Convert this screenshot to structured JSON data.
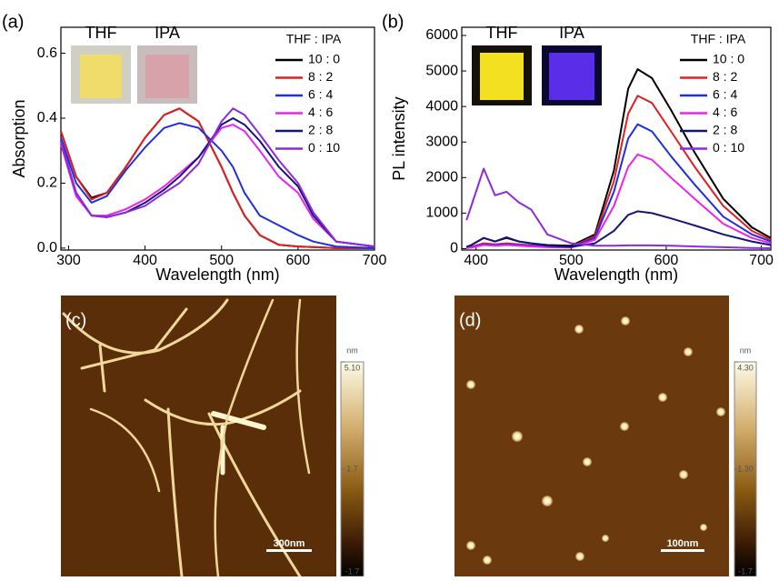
{
  "chart_data": [
    {
      "type": "line",
      "panel_label": "(a)",
      "x_label": "Wavelength (nm)",
      "y_label": "Absorption",
      "legend_title": "THF : IPA",
      "inset_labels": [
        "THF",
        "IPA"
      ],
      "xlim": [
        290,
        700
      ],
      "xticks": [
        300,
        400,
        500,
        600,
        700
      ],
      "ylim": [
        -0.006,
        0.68
      ],
      "yticks": [
        {
          "value": 0,
          "label": "0.0"
        },
        0.2,
        0.4,
        0.6
      ],
      "x": [
        290,
        310,
        330,
        350,
        375,
        400,
        425,
        445,
        470,
        500,
        515,
        530,
        550,
        575,
        600,
        620,
        650,
        700
      ],
      "series": [
        {
          "name": "10 : 0",
          "color": "#000000",
          "values": [
            0.36,
            0.22,
            0.155,
            0.17,
            0.25,
            0.34,
            0.41,
            0.43,
            0.39,
            0.25,
            0.17,
            0.1,
            0.04,
            0.01,
            0.005,
            0.003,
            0,
            0
          ]
        },
        {
          "name": "8 : 2",
          "color": "#e02020",
          "values": [
            0.36,
            0.22,
            0.15,
            0.17,
            0.25,
            0.34,
            0.41,
            0.43,
            0.39,
            0.25,
            0.17,
            0.1,
            0.04,
            0.01,
            0.005,
            0.003,
            0,
            0
          ]
        },
        {
          "name": "6 : 4",
          "color": "#1f2fe0",
          "values": [
            0.34,
            0.2,
            0.14,
            0.16,
            0.24,
            0.31,
            0.37,
            0.385,
            0.37,
            0.3,
            0.25,
            0.17,
            0.1,
            0.07,
            0.04,
            0.02,
            0.005,
            0
          ]
        },
        {
          "name": "4 : 6",
          "color": "#ee22ee",
          "values": [
            0.32,
            0.16,
            0.1,
            0.1,
            0.12,
            0.15,
            0.19,
            0.23,
            0.28,
            0.37,
            0.38,
            0.36,
            0.3,
            0.22,
            0.17,
            0.09,
            0.02,
            0.005
          ]
        },
        {
          "name": "2 : 8",
          "color": "#14147a",
          "values": [
            0.33,
            0.17,
            0.1,
            0.095,
            0.11,
            0.14,
            0.18,
            0.22,
            0.28,
            0.38,
            0.4,
            0.38,
            0.33,
            0.25,
            0.19,
            0.1,
            0.02,
            0.005
          ]
        },
        {
          "name": "0 : 10",
          "color": "#8a2be2",
          "values": [
            0.33,
            0.17,
            0.1,
            0.095,
            0.11,
            0.13,
            0.17,
            0.2,
            0.26,
            0.39,
            0.43,
            0.41,
            0.35,
            0.27,
            0.2,
            0.11,
            0.02,
            0.005
          ]
        }
      ]
    },
    {
      "type": "line",
      "panel_label": "(b)",
      "x_label": "Wavelength (nm)",
      "y_label": "PL intensity",
      "legend_title": "THF : IPA",
      "inset_labels": [
        "THF",
        "IPA"
      ],
      "xlim": [
        385,
        710
      ],
      "xticks": [
        400,
        500,
        600,
        700
      ],
      "ylim": [
        -40,
        6230
      ],
      "yticks": [
        0,
        1000,
        2000,
        3000,
        4000,
        5000,
        6000
      ],
      "x": [
        390,
        395,
        408,
        420,
        432,
        445,
        458,
        475,
        500,
        525,
        545,
        560,
        570,
        585,
        605,
        630,
        660,
        690,
        710
      ],
      "series": [
        {
          "name": "10 : 0",
          "color": "#000000",
          "values": [
            50,
            100,
            300,
            200,
            300,
            200,
            150,
            100,
            80,
            400,
            2200,
            4500,
            5050,
            4800,
            3900,
            2700,
            1400,
            600,
            300
          ]
        },
        {
          "name": "8 : 2",
          "color": "#e02020",
          "values": [
            30,
            50,
            150,
            120,
            150,
            120,
            90,
            60,
            50,
            350,
            1900,
            3800,
            4300,
            4100,
            3300,
            2300,
            1200,
            500,
            250
          ]
        },
        {
          "name": "6 : 4",
          "color": "#1f2fe0",
          "values": [
            20,
            40,
            120,
            100,
            120,
            100,
            80,
            50,
            40,
            300,
            1600,
            3100,
            3500,
            3300,
            2600,
            1800,
            900,
            400,
            200
          ]
        },
        {
          "name": "4 : 6",
          "color": "#ee22ee",
          "values": [
            15,
            30,
            100,
            80,
            100,
            80,
            60,
            40,
            30,
            250,
            1200,
            2300,
            2650,
            2500,
            2000,
            1400,
            700,
            300,
            150
          ]
        },
        {
          "name": "2 : 8",
          "color": "#14147a",
          "values": [
            50,
            100,
            300,
            200,
            320,
            200,
            150,
            80,
            50,
            150,
            500,
            950,
            1050,
            1000,
            850,
            650,
            400,
            200,
            100
          ]
        },
        {
          "name": "0 : 10",
          "color": "#8a2be2",
          "values": [
            800,
            1200,
            2250,
            1500,
            1600,
            1300,
            1100,
            400,
            150,
            80,
            80,
            90,
            90,
            90,
            80,
            60,
            40,
            20,
            10
          ]
        }
      ]
    }
  ],
  "images": [
    {
      "panel_label": "(c)",
      "scale_bar": "300nm",
      "colorbar_unit": "nm",
      "colorbar_lim": [
        -1.7,
        5.1
      ],
      "colorbar_ticks": [
        {
          "value": 5.1,
          "label": "5.10"
        },
        1.7,
        -1.7
      ]
    },
    {
      "panel_label": "(d)",
      "scale_bar": "100nm",
      "colorbar_unit": "nm",
      "colorbar_lim": [
        -1.7,
        4.3
      ],
      "colorbar_ticks": [
        {
          "value": 4.3,
          "label": "4.30"
        },
        {
          "value": 1.3,
          "label": "1.30"
        },
        -1.7
      ]
    }
  ]
}
